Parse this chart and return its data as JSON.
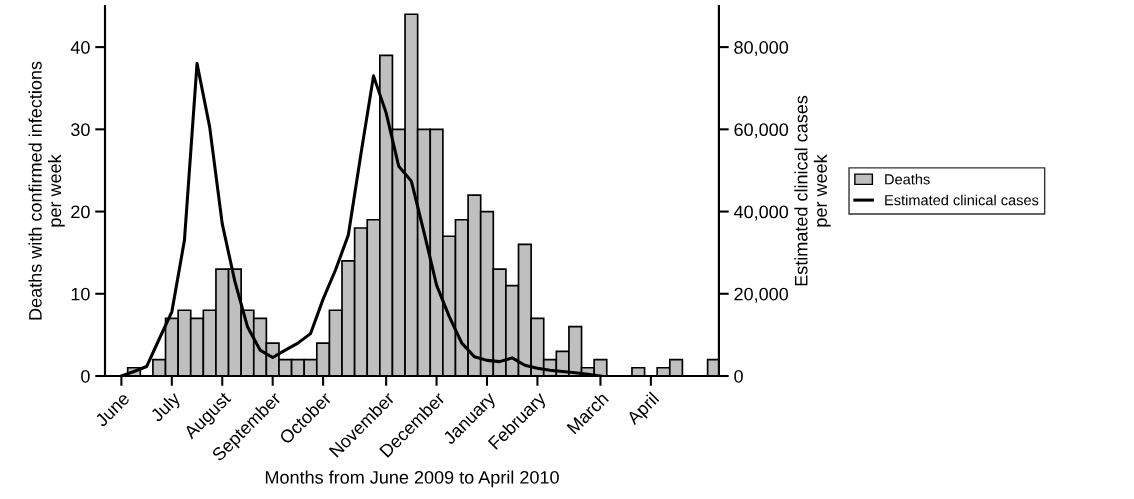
{
  "chart_data": {
    "type": "bar",
    "xlabel": "Months from June 2009 to April 2010",
    "ylabel": "Deaths with confirmed infections\nper week",
    "y2label": "Estimated clinical cases\nper week",
    "categories": [
      "June",
      null,
      null,
      null,
      "July",
      null,
      null,
      null,
      "August",
      null,
      null,
      null,
      "September",
      null,
      null,
      null,
      "October",
      null,
      null,
      null,
      null,
      "November",
      null,
      null,
      null,
      "December",
      null,
      null,
      null,
      "January",
      null,
      null,
      null,
      "February",
      null,
      null,
      null,
      null,
      "March",
      null,
      null,
      null,
      "April",
      null,
      null,
      null,
      null,
      null
    ],
    "ylim": [
      0,
      45
    ],
    "yticks": [
      0,
      10,
      20,
      30,
      40
    ],
    "y2lim": [
      0,
      90000
    ],
    "y2ticks": [
      0,
      {
        "value": 20000,
        "label": "20,000"
      },
      {
        "value": 40000,
        "label": "40,000"
      },
      {
        "value": 60000,
        "label": "60,000"
      },
      {
        "value": 80000,
        "label": "80,000"
      }
    ],
    "series": [
      {
        "name": "Deaths",
        "color": "#bfbfbf",
        "values": [
          null,
          1,
          0,
          2,
          7,
          8,
          7,
          8,
          13,
          13,
          8,
          7,
          4,
          2,
          2,
          2,
          4,
          8,
          14,
          18,
          19,
          39,
          30,
          44,
          30,
          30,
          17,
          19,
          22,
          20,
          13,
          11,
          16,
          7,
          2,
          3,
          6,
          1,
          2,
          0,
          0,
          1,
          0,
          1,
          2,
          0,
          0,
          2
        ]
      },
      {
        "name": "Estimated clinical cases",
        "type": "line",
        "axis": "y2",
        "color": "#000000",
        "values": [
          0,
          1100,
          2300,
          9000,
          15600,
          33000,
          76000,
          60600,
          37000,
          23000,
          12000,
          6300,
          4500,
          6300,
          8000,
          10300,
          18700,
          25900,
          34300,
          54000,
          73000,
          64000,
          51000,
          47400,
          35000,
          22100,
          14500,
          8000,
          4700,
          3800,
          3500,
          4400,
          2600,
          1900,
          1400,
          1100,
          800,
          400,
          0,
          null,
          null,
          null,
          null,
          null,
          null,
          null,
          null,
          null
        ]
      }
    ],
    "legend": "right",
    "grid": false
  }
}
